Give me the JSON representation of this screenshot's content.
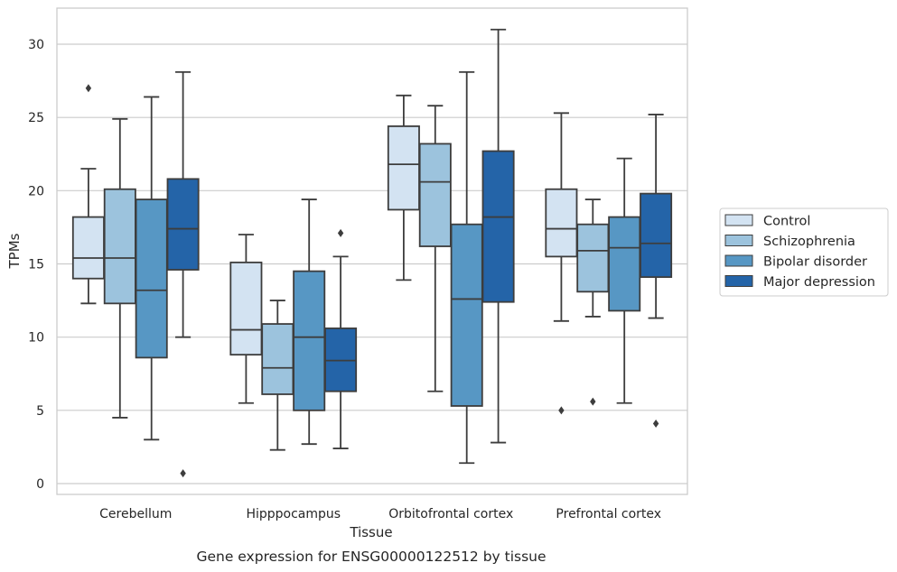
{
  "chart_data": {
    "type": "boxplot",
    "xlabel": "Tissue",
    "ylabel": "TPMs",
    "caption": "Gene expression for ENSG00000122512 by tissue",
    "ylim": [
      -0.8,
      32.5
    ],
    "yticks": [
      0,
      5,
      10,
      15,
      20,
      25,
      30
    ],
    "grid": "horizontal",
    "legend_position": "right",
    "categories": [
      "Cerebellum",
      "Hipppocampus",
      "Orbitofrontal cortex",
      "Prefrontal cortex"
    ],
    "series": [
      {
        "name": "Control",
        "color": "#d3e3f2",
        "boxes": [
          {
            "whislo": 12.3,
            "q1": 14.0,
            "med": 15.4,
            "q3": 18.2,
            "whishi": 21.5,
            "fliers": [
              27.0
            ]
          },
          {
            "whislo": 5.5,
            "q1": 8.8,
            "med": 10.5,
            "q3": 15.1,
            "whishi": 17.0,
            "fliers": []
          },
          {
            "whislo": 13.9,
            "q1": 18.7,
            "med": 21.8,
            "q3": 24.4,
            "whishi": 26.5,
            "fliers": []
          },
          {
            "whislo": 11.1,
            "q1": 15.5,
            "med": 17.4,
            "q3": 20.1,
            "whishi": 25.3,
            "fliers": [
              5.0
            ]
          }
        ]
      },
      {
        "name": "Schizophrenia",
        "color": "#9cc3dd",
        "boxes": [
          {
            "whislo": 4.5,
            "q1": 12.3,
            "med": 15.4,
            "q3": 20.1,
            "whishi": 24.9,
            "fliers": []
          },
          {
            "whislo": 2.3,
            "q1": 6.1,
            "med": 7.9,
            "q3": 10.9,
            "whishi": 12.5,
            "fliers": []
          },
          {
            "whislo": 6.3,
            "q1": 16.2,
            "med": 20.6,
            "q3": 23.2,
            "whishi": 25.8,
            "fliers": []
          },
          {
            "whislo": 11.4,
            "q1": 13.1,
            "med": 15.9,
            "q3": 17.7,
            "whishi": 19.4,
            "fliers": [
              5.6
            ]
          }
        ]
      },
      {
        "name": "Bipolar disorder",
        "color": "#5797c4",
        "boxes": [
          {
            "whislo": 3.0,
            "q1": 8.6,
            "med": 13.2,
            "q3": 19.4,
            "whishi": 26.4,
            "fliers": []
          },
          {
            "whislo": 2.7,
            "q1": 5.0,
            "med": 10.0,
            "q3": 14.5,
            "whishi": 19.4,
            "fliers": []
          },
          {
            "whislo": 1.4,
            "q1": 5.3,
            "med": 12.6,
            "q3": 17.7,
            "whishi": 28.1,
            "fliers": []
          },
          {
            "whislo": 5.5,
            "q1": 11.8,
            "med": 16.1,
            "q3": 18.2,
            "whishi": 22.2,
            "fliers": []
          }
        ]
      },
      {
        "name": "Major depression",
        "color": "#2464a8",
        "boxes": [
          {
            "whislo": 10.0,
            "q1": 14.6,
            "med": 17.4,
            "q3": 20.8,
            "whishi": 28.1,
            "fliers": [
              0.7
            ]
          },
          {
            "whislo": 2.4,
            "q1": 6.3,
            "med": 8.4,
            "q3": 10.6,
            "whishi": 15.5,
            "fliers": [
              17.1
            ]
          },
          {
            "whislo": 2.8,
            "q1": 12.4,
            "med": 18.2,
            "q3": 22.7,
            "whishi": 31.0,
            "fliers": []
          },
          {
            "whislo": 11.3,
            "q1": 14.1,
            "med": 16.4,
            "q3": 19.8,
            "whishi": 25.2,
            "fliers": [
              4.1
            ]
          }
        ]
      }
    ]
  }
}
